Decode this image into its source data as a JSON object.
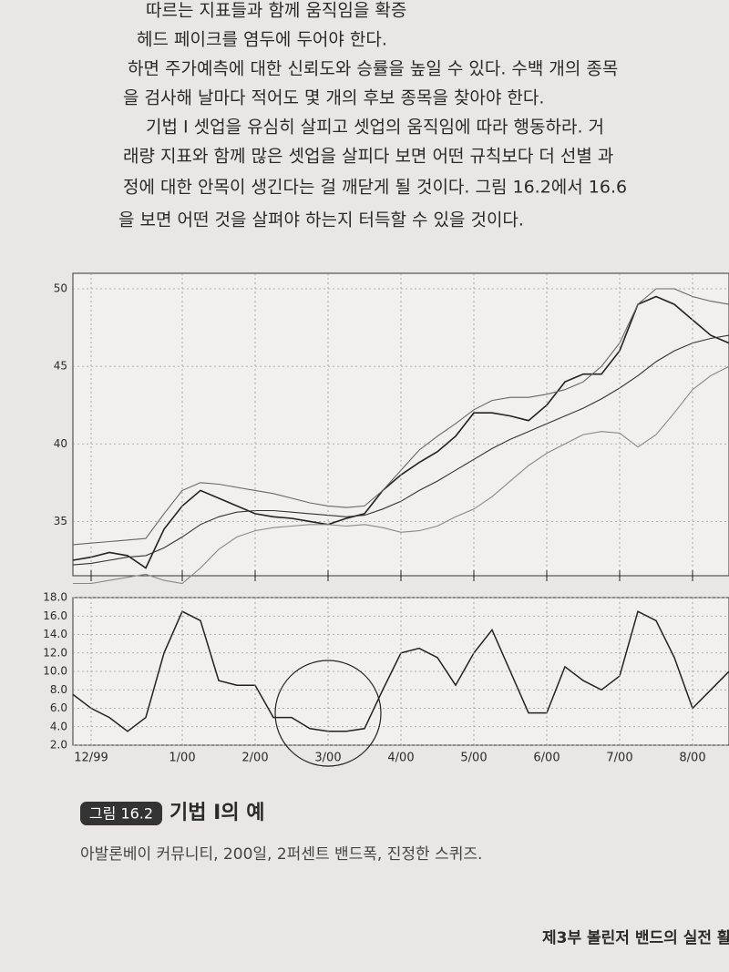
{
  "text": {
    "lines": [
      "따르는 지표들과 함께 움직임을 확증",
      "헤드 페이크를 염두에 두어야 한다.",
      "하면 주가예측에 대한 신뢰도와 승률을 높일 수 있다. 수백 개의 종목",
      "을 검사해 날마다 적어도 몇 개의 후보 종목을 찾아야 한다.",
      "기법 I 셋업을 유심히 살피고 셋업의 움직임에 따라 행동하라. 거",
      "래량 지표와 함께 많은 셋업을 살피다 보면 어떤 규칙보다 더 선별 과",
      "정에 대한 안목이 생긴다는 걸 깨닫게 될 것이다. 그림 16.2에서 16.6",
      "을 보면 어떤 것을 살펴야 하는지 터득할 수 있을 것이다."
    ]
  },
  "chart_data": [
    {
      "type": "line",
      "grid": true,
      "ylim": [
        31.5,
        51
      ],
      "yticks": [
        35,
        40,
        45,
        50
      ],
      "series": [
        {
          "color": "#222222",
          "values": [
            32.5,
            32.7,
            33,
            32.8,
            32,
            34.5,
            36,
            37,
            36.5,
            36,
            35.5,
            35.3,
            35.2,
            35,
            34.8,
            35.2,
            35.5,
            37,
            38,
            38.8,
            39.5,
            40.5,
            42,
            42,
            41.8,
            41.5,
            42.5,
            44,
            44.5,
            44.5,
            46,
            49,
            49.5,
            49,
            48,
            47,
            46.5
          ]
        },
        {
          "color": "#333333",
          "values": [
            32.2,
            32.3,
            32.5,
            32.7,
            32.8,
            33.3,
            34,
            34.8,
            35.3,
            35.6,
            35.7,
            35.7,
            35.6,
            35.5,
            35.4,
            35.3,
            35.4,
            35.8,
            36.3,
            37,
            37.6,
            38.3,
            39,
            39.7,
            40.3,
            40.8,
            41.3,
            41.8,
            42.3,
            42.9,
            43.6,
            44.4,
            45.3,
            46,
            46.5,
            46.8,
            47
          ]
        },
        {
          "color": "#666666",
          "values": [
            33.5,
            33.6,
            33.7,
            33.8,
            33.9,
            35.5,
            37,
            37.5,
            37.4,
            37.2,
            37,
            36.8,
            36.5,
            36.2,
            36,
            35.9,
            36,
            37,
            38.3,
            39.6,
            40.5,
            41.3,
            42.2,
            42.8,
            43,
            43,
            43.2,
            43.5,
            44,
            45,
            46.5,
            49,
            50,
            50,
            49.5,
            49.2,
            49
          ]
        },
        {
          "color": "#888888",
          "values": [
            31,
            31,
            31.2,
            31.4,
            31.6,
            31.2,
            31,
            32,
            33.2,
            34,
            34.4,
            34.6,
            34.7,
            34.8,
            34.8,
            34.7,
            34.8,
            34.6,
            34.3,
            34.4,
            34.7,
            35.3,
            35.8,
            36.6,
            37.6,
            38.6,
            39.4,
            40,
            40.6,
            40.8,
            40.7,
            39.8,
            40.6,
            42,
            43.5,
            44.4,
            45
          ]
        }
      ]
    },
    {
      "type": "line",
      "grid": true,
      "color": "#222222",
      "ylim": [
        2,
        18
      ],
      "yticks": [
        {
          "value": 2,
          "label": "2.0"
        },
        {
          "value": 4,
          "label": "4.0"
        },
        {
          "value": 6,
          "label": "6.0"
        },
        {
          "value": 8,
          "label": "8.0"
        },
        {
          "value": 10,
          "label": "10.0"
        },
        {
          "value": 12,
          "label": "12.0"
        },
        {
          "value": 14,
          "label": "14.0"
        },
        {
          "value": 16,
          "label": "16.0"
        },
        {
          "value": 18,
          "label": "18.0"
        }
      ],
      "categories": [
        null,
        "12/99",
        null,
        null,
        null,
        null,
        "1/00",
        null,
        null,
        null,
        "2/00",
        null,
        null,
        null,
        "3/00",
        null,
        null,
        null,
        "4/00",
        null,
        null,
        null,
        "5/00",
        null,
        null,
        null,
        "6/00",
        null,
        null,
        null,
        "7/00",
        null,
        null,
        null,
        "8/00",
        null,
        null
      ],
      "values": [
        7.5,
        6,
        5,
        3.5,
        5,
        12,
        16.5,
        15.5,
        9,
        8.5,
        8.5,
        5,
        5,
        3.8,
        3.5,
        3.5,
        3.8,
        8,
        12,
        12.5,
        11.5,
        8.5,
        12,
        14.5,
        10,
        5.5,
        5.5,
        10.5,
        9,
        8,
        9.5,
        16.5,
        15.5,
        11.5,
        6,
        8,
        10
      ]
    }
  ],
  "caption": {
    "label": "그림 16.2",
    "title": "기법 I의 예",
    "subtitle": "아발론베이 커뮤니티, 200일, 2퍼센트 밴드폭, 진정한 스퀴즈."
  },
  "footer": "제3부 볼린저 밴드의 실전 활"
}
